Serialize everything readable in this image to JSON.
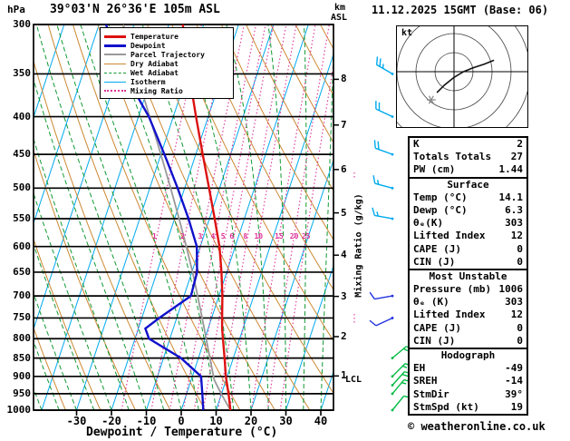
{
  "header": {
    "pressure_unit": "hPa",
    "station": "39°03'N 26°36'E 105m ASL",
    "alt_unit_line1": "km",
    "alt_unit_line2": "ASL",
    "datetime": "11.12.2025 15GMT (Base: 06)"
  },
  "axes": {
    "xlabel": "Dewpoint / Temperature (°C)",
    "right_label": "Mixing Ratio (g/kg)",
    "lcl_label": "LCL",
    "pressure_ticks": [
      300,
      350,
      400,
      450,
      500,
      550,
      600,
      650,
      700,
      750,
      800,
      850,
      900,
      950,
      1000
    ],
    "temp_ticks": [
      -30,
      -20,
      -10,
      0,
      10,
      20,
      30,
      40
    ],
    "km_ticks": [
      1,
      2,
      3,
      4,
      5,
      6,
      7,
      8
    ]
  },
  "legend": [
    {
      "label": "Temperature",
      "color": "#dd1111",
      "line_style": "solid",
      "thickness": 3
    },
    {
      "label": "Dewpoint",
      "color": "#1111cc",
      "line_style": "solid",
      "thickness": 3
    },
    {
      "label": "Parcel Trajectory",
      "color": "#999999",
      "line_style": "solid",
      "thickness": 2
    },
    {
      "label": "Dry Adiabat",
      "color": "#cc8833",
      "line_style": "solid",
      "thickness": 1
    },
    {
      "label": "Wet Adiabat",
      "color": "#119933",
      "line_style": "dashed",
      "thickness": 1
    },
    {
      "label": "Isotherm",
      "color": "#00aaee",
      "line_style": "solid",
      "thickness": 1
    },
    {
      "label": "Mixing Ratio",
      "color": "#dd3399",
      "line_style": "dotted",
      "thickness": 2
    }
  ],
  "chart_data": [
    {
      "type": "line",
      "subtype": "skewt_log_p_sounding",
      "title": "Skew-T log-P sounding",
      "pressure_range_hpa": [
        300,
        1000
      ],
      "surface_temp_axis_range_c": [
        -42,
        44
      ],
      "colors": {
        "temperature": "#dd1111",
        "dewpoint": "#1111cc",
        "parcel": "#999999",
        "dry_adiabat": "#cc8833",
        "wet_adiabat": "#119933",
        "isotherm": "#00aaee",
        "mixing_ratio": "#dd3399"
      },
      "grid": {
        "isotherm_step_c": 10,
        "dry_adiabat_step_k": 10,
        "wet_adiabat_start_temps_c": [
          -40,
          -35,
          -30,
          -25,
          -20,
          -15,
          -10,
          -5,
          0,
          5,
          10,
          15,
          20,
          25,
          30,
          35,
          40
        ],
        "mixing_ratio_lines_gkg": [
          1,
          2,
          3,
          4,
          5,
          6,
          8,
          10,
          15,
          20,
          25
        ],
        "mixing_ratio_label_pressure_hpa": 590
      },
      "sounding": {
        "pressure_hpa": [
          1000,
          950,
          925,
          900,
          850,
          800,
          775,
          750,
          700,
          650,
          600,
          550,
          500,
          450,
          400,
          350,
          300
        ],
        "temperature_c": [
          14.1,
          12.0,
          10.8,
          9.6,
          7.5,
          5.2,
          4.0,
          3.0,
          1.0,
          -1.5,
          -4.5,
          -8.5,
          -13.0,
          -18.0,
          -23.5,
          -29.5,
          -36.0
        ],
        "dewpoint_c": [
          6.3,
          4.5,
          3.5,
          2.5,
          -5.0,
          -16.0,
          -18.0,
          -15.0,
          -8.0,
          -8.5,
          -11.0,
          -16.0,
          -22.0,
          -29.0,
          -37.0,
          -48.0,
          -58.0
        ]
      },
      "parcel": {
        "pressure_hpa": [
          1000,
          950,
          910,
          850,
          800,
          750,
          700,
          650,
          600,
          550,
          500,
          450,
          400,
          350,
          300
        ],
        "temperature_c": [
          14.1,
          9.9,
          6.6,
          3.3,
          0.4,
          -2.7,
          -6.1,
          -9.8,
          -14.0,
          -18.7,
          -24.0,
          -30.0,
          -36.8,
          -44.5,
          -53.0
        ]
      },
      "lcl_pressure_hpa": 910,
      "winds": [
        {
          "p": 350,
          "dir_deg": 300,
          "spd_kt": 25,
          "color": "#00aaee"
        },
        {
          "p": 400,
          "dir_deg": 295,
          "spd_kt": 20,
          "color": "#00aaee"
        },
        {
          "p": 450,
          "dir_deg": 290,
          "spd_kt": 20,
          "color": "#00aaee"
        },
        {
          "p": 500,
          "dir_deg": 285,
          "spd_kt": 15,
          "color": "#00aaee"
        },
        {
          "p": 550,
          "dir_deg": 280,
          "spd_kt": 15,
          "color": "#00aaee"
        },
        {
          "p": 700,
          "dir_deg": 260,
          "spd_kt": 10,
          "color": "#2233dd"
        },
        {
          "p": 750,
          "dir_deg": 245,
          "spd_kt": 10,
          "color": "#2233dd"
        },
        {
          "p": 850,
          "dir_deg": 50,
          "spd_kt": 15,
          "color": "#00bb44"
        },
        {
          "p": 900,
          "dir_deg": 45,
          "spd_kt": 15,
          "color": "#00bb44"
        },
        {
          "p": 925,
          "dir_deg": 42,
          "spd_kt": 20,
          "color": "#00bb44"
        },
        {
          "p": 950,
          "dir_deg": 40,
          "spd_kt": 15,
          "color": "#00bb44"
        },
        {
          "p": 1000,
          "dir_deg": 39,
          "spd_kt": 10,
          "color": "#00bb44"
        }
      ]
    },
    {
      "type": "line",
      "subtype": "hodograph",
      "unit_label": "kt",
      "rings_kt": [
        10,
        20,
        30,
        40
      ],
      "trace_uv_kt": [
        [
          -9,
          -11
        ],
        [
          -5,
          -7
        ],
        [
          0,
          -3
        ],
        [
          5,
          0
        ],
        [
          10,
          2
        ],
        [
          16,
          4
        ],
        [
          21,
          6
        ]
      ],
      "storm_motion": {
        "dir_deg": 39,
        "spd_kt": 19
      }
    }
  ],
  "indices": {
    "rows_top": [
      [
        "K",
        "2"
      ],
      [
        "Totals Totals",
        "27"
      ],
      [
        "PW (cm)",
        "1.44"
      ]
    ],
    "sections": [
      {
        "title": "Surface",
        "rows": [
          [
            "Temp (°C)",
            "14.1"
          ],
          [
            "Dewp (°C)",
            "6.3"
          ],
          [
            "θₑ(K)",
            "303"
          ],
          [
            "Lifted Index",
            "12"
          ],
          [
            "CAPE (J)",
            "0"
          ],
          [
            "CIN (J)",
            "0"
          ]
        ]
      },
      {
        "title": "Most Unstable",
        "rows": [
          [
            "Pressure (mb)",
            "1006"
          ],
          [
            "θₑ (K)",
            "303"
          ],
          [
            "Lifted Index",
            "12"
          ],
          [
            "CAPE (J)",
            "0"
          ],
          [
            "CIN (J)",
            "0"
          ]
        ]
      },
      {
        "title": "Hodograph",
        "rows": [
          [
            "EH",
            "-49"
          ],
          [
            "SREH",
            "-14"
          ],
          [
            "StmDir",
            "39°"
          ],
          [
            "StmSpd (kt)",
            "19"
          ]
        ]
      }
    ]
  },
  "footer": {
    "credit": "© weatheronline.co.uk"
  }
}
